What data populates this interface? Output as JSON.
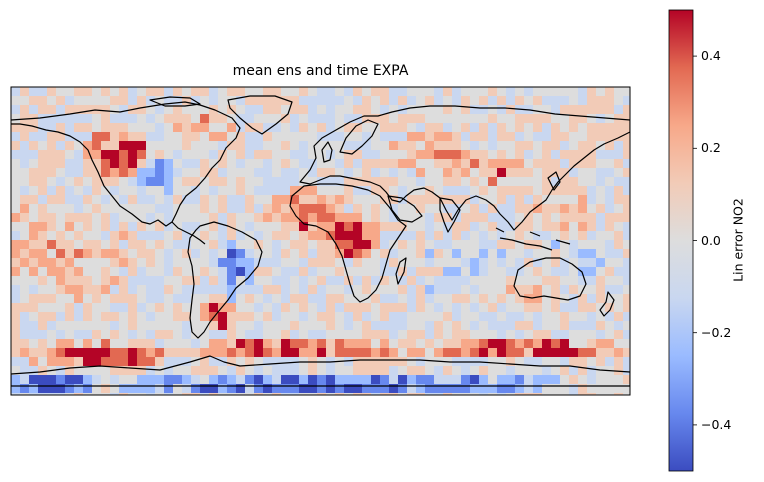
{
  "title": "mean ens and time EXPA",
  "colorbar": {
    "label": "Lin error NO2",
    "min": -0.5,
    "max": 0.5,
    "ticks": [
      0.4,
      0.2,
      0.0,
      -0.2,
      -0.4
    ],
    "tick_labels": [
      "0.4",
      "0.2",
      "0.0",
      "−0.2",
      "−0.4"
    ],
    "colormap": "coolwarm",
    "colors": [
      "#3b4cc0",
      "#6788ee",
      "#9abbff",
      "#c9d7f0",
      "#dddddd",
      "#f2cbb7",
      "#f7a889",
      "#e26952",
      "#b40426"
    ]
  },
  "map": {
    "projection": "PlateCarree",
    "extent": [
      -180,
      180,
      -90,
      90
    ],
    "coastlines": true,
    "coastline_color": "#000000"
  }
}
